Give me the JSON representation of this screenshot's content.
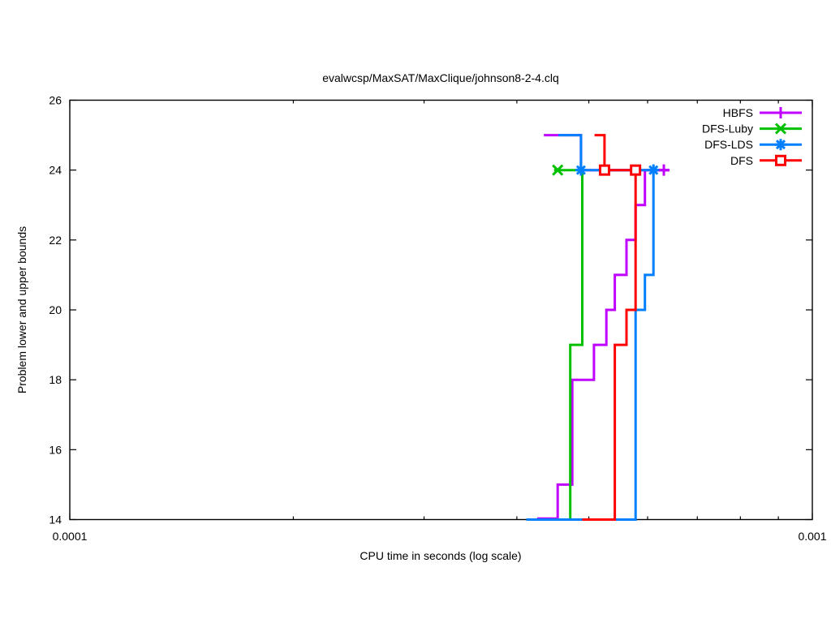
{
  "window": {
    "background": "#ffffff",
    "foreground": "#000000"
  },
  "chart_data": {
    "type": "line",
    "subtype": "steps-with-points",
    "title": "evalwcsp/MaxSAT/MaxClique/johnson8-2-4.clq",
    "xlabel": "CPU time in seconds (log scale)",
    "ylabel": "Problem lower and upper bounds",
    "x_scale": "log",
    "xlim": [
      0.0001,
      0.001
    ],
    "ylim": [
      14,
      26
    ],
    "grid": false,
    "legend_position": "top-right-inside",
    "x_ticks_labeled": [
      {
        "value": 0.0001,
        "label": "0.0001"
      },
      {
        "value": 0.001,
        "label": "0.001"
      }
    ],
    "x_minor_ticks": [
      0.0002,
      0.0003,
      0.0004,
      0.0005,
      0.0006,
      0.0007,
      0.0008,
      0.0009
    ],
    "y_ticks": [
      {
        "value": 14,
        "label": "14"
      },
      {
        "value": 16,
        "label": "16"
      },
      {
        "value": 18,
        "label": "18"
      },
      {
        "value": 20,
        "label": "20"
      },
      {
        "value": 22,
        "label": "22"
      },
      {
        "value": 24,
        "label": "24"
      },
      {
        "value": 26,
        "label": "26"
      }
    ],
    "optimum": 24,
    "series": [
      {
        "name": "HBFS",
        "color": "#C000FF",
        "marker": "plus",
        "lower_bound_steps": [
          [
            0.000426,
            14
          ],
          [
            0.000454,
            15
          ],
          [
            0.000475,
            18
          ],
          [
            0.000508,
            19
          ],
          [
            0.000528,
            20
          ],
          [
            0.000542,
            21
          ],
          [
            0.000562,
            22
          ],
          [
            0.000578,
            23
          ],
          [
            0.000595,
            24
          ],
          [
            0.000642,
            24
          ]
        ],
        "upper_bound_steps": [
          [
            0.000435,
            25
          ],
          [
            0.000488,
            24
          ],
          [
            0.000642,
            24
          ]
        ],
        "marker_points": [
          [
            0.000631,
            24
          ]
        ]
      },
      {
        "name": "DFS-Luby",
        "color": "#00C000",
        "marker": "cross",
        "lower_bound_steps": [
          [
            0.00043,
            14
          ],
          [
            0.000472,
            19
          ],
          [
            0.00049,
            24
          ]
        ],
        "upper_bound_steps": [
          [
            0.000449,
            24
          ],
          [
            0.00049,
            24
          ]
        ],
        "marker_points": [
          [
            0.000454,
            24
          ]
        ]
      },
      {
        "name": "DFS-LDS",
        "color": "#0080FF",
        "marker": "asterisk",
        "lower_bound_steps": [
          [
            0.000412,
            14
          ],
          [
            0.000578,
            20
          ],
          [
            0.000595,
            21
          ],
          [
            0.000611,
            24
          ]
        ],
        "upper_bound_steps": [
          [
            0.000455,
            25
          ],
          [
            0.000488,
            24
          ],
          [
            0.000611,
            24
          ]
        ],
        "marker_points": [
          [
            0.000488,
            24
          ],
          [
            0.000611,
            24
          ]
        ]
      },
      {
        "name": "DFS",
        "color": "#FF0000",
        "marker": "square",
        "lower_bound_steps": [
          [
            0.00049,
            14
          ],
          [
            0.000542,
            19
          ],
          [
            0.000562,
            20
          ],
          [
            0.000578,
            24
          ]
        ],
        "upper_bound_steps": [
          [
            0.000509,
            25
          ],
          [
            0.000525,
            24
          ],
          [
            0.000585,
            24
          ]
        ],
        "marker_points": [
          [
            0.000525,
            24
          ],
          [
            0.000578,
            24
          ]
        ]
      }
    ]
  }
}
